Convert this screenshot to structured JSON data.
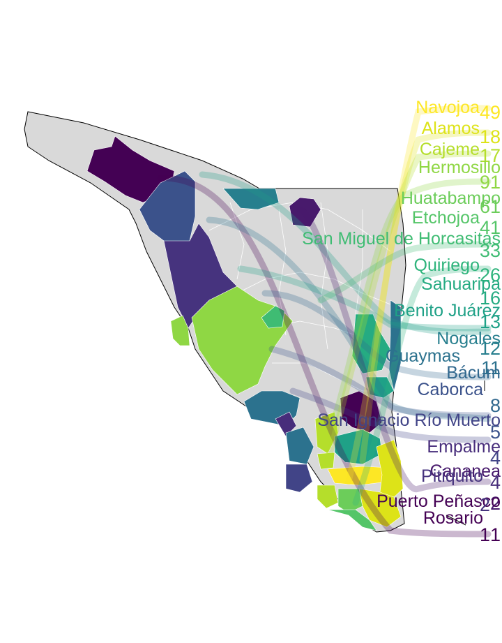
{
  "map": {
    "base_fill": "#d9d9d9",
    "border_color": "#ffffff",
    "outline_color": "#000000"
  },
  "labels": [
    {
      "name": "Navojoa",
      "value": "49",
      "color": "#fde725"
    },
    {
      "name": "Alamos",
      "value": "18",
      "color": "#dde318"
    },
    {
      "name": "Cajeme",
      "value": "17",
      "color": "#b5de2b"
    },
    {
      "name": "Hermosillo",
      "value": "91",
      "color": "#8fd744"
    },
    {
      "name": "Huatabampo",
      "value": "61",
      "color": "#6ccd5a"
    },
    {
      "name": "Etchojoa",
      "value": "41",
      "color": "#54c568"
    },
    {
      "name": "San Miguel de Horcasitas",
      "value": "33",
      "color": "#3fbc73"
    },
    {
      "name": "Quiriego",
      "value": "26",
      "color": "#2fb47c"
    },
    {
      "name": "Sahuaripa",
      "value": "16",
      "color": "#25ab82"
    },
    {
      "name": "Benito Juárez",
      "value": "13",
      "color": "#1fa187"
    },
    {
      "name": "Nogales",
      "value": "12",
      "color": "#277f8e"
    },
    {
      "name": "Guaymas",
      "value": "11",
      "color": "#2c728e"
    },
    {
      "name": "Bácum",
      "value": "8",
      "color": "#31688e"
    },
    {
      "name": "Caborca",
      "value": "5",
      "color": "#3b528b"
    },
    {
      "name": "San Ignacio Río Muerto",
      "value": "4",
      "color": "#414487"
    },
    {
      "name": "Empalme",
      "value": "4",
      "color": "#472d7b"
    },
    {
      "name": "Cananea",
      "value": "2",
      "color": "#481a6c"
    },
    {
      "name": "Pitiquito",
      "value": "2",
      "color": "#46337e"
    },
    {
      "name": "Puerto Peñasco",
      "value": "1",
      "color": "#440154"
    },
    {
      "name": "Rosario",
      "value": "1",
      "color": "#440154"
    }
  ]
}
